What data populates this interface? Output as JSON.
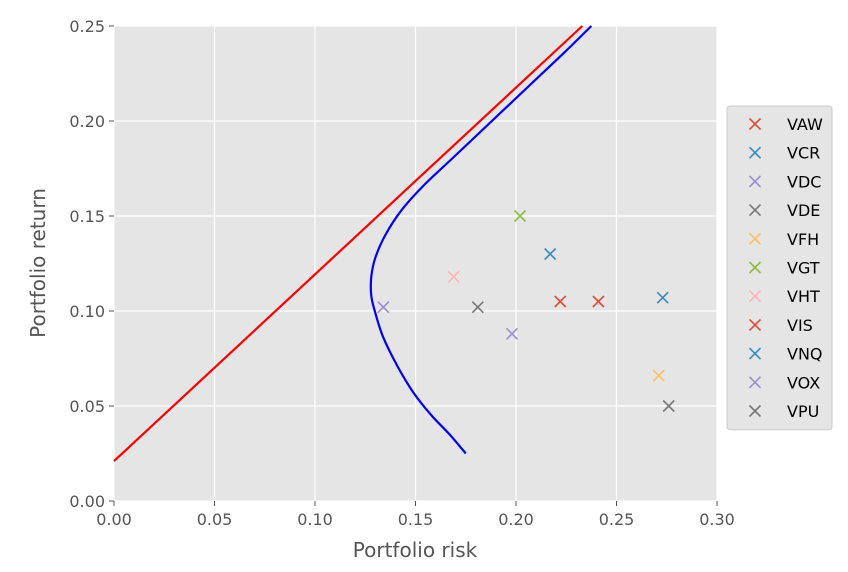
{
  "chart_data": {
    "type": "scatter",
    "xlabel": "Portfolio risk",
    "ylabel": "Portfolio return",
    "xlim": [
      0.0,
      0.3
    ],
    "ylim": [
      0.0,
      0.25
    ],
    "xticks": [
      "0.00",
      "0.05",
      "0.10",
      "0.15",
      "0.20",
      "0.25",
      "0.30"
    ],
    "yticks": [
      "0.00",
      "0.05",
      "0.10",
      "0.15",
      "0.20",
      "0.25"
    ],
    "grid": true,
    "legend_position": "right",
    "points": [
      {
        "name": "VAW",
        "x": 0.241,
        "y": 0.105,
        "color": "#E24A33"
      },
      {
        "name": "VCR",
        "x": 0.217,
        "y": 0.13,
        "color": "#348ABD"
      },
      {
        "name": "VDC",
        "x": 0.134,
        "y": 0.102,
        "color": "#988ED5"
      },
      {
        "name": "VDE",
        "x": 0.181,
        "y": 0.102,
        "color": "#777777"
      },
      {
        "name": "VFH",
        "x": 0.271,
        "y": 0.066,
        "color": "#FBC15E"
      },
      {
        "name": "VGT",
        "x": 0.202,
        "y": 0.15,
        "color": "#8EBA42"
      },
      {
        "name": "VHT",
        "x": 0.169,
        "y": 0.118,
        "color": "#FFB5B8"
      },
      {
        "name": "VIS",
        "x": 0.222,
        "y": 0.105,
        "color": "#E24A33"
      },
      {
        "name": "VNQ",
        "x": 0.273,
        "y": 0.107,
        "color": "#348ABD"
      },
      {
        "name": "VOX",
        "x": 0.198,
        "y": 0.088,
        "color": "#988ED5"
      },
      {
        "name": "VPU",
        "x": 0.276,
        "y": 0.05,
        "color": "#777777"
      }
    ],
    "capital_market_line": {
      "x": [
        0.0,
        0.233
      ],
      "y": [
        0.021,
        0.25
      ],
      "color": "#ff0000"
    },
    "efficient_frontier": {
      "color": "#0000ff",
      "x": [
        0.175,
        0.167,
        0.158,
        0.149,
        0.141,
        0.134,
        0.13,
        0.128,
        0.128,
        0.13,
        0.135,
        0.143,
        0.154,
        0.168,
        0.182,
        0.196,
        0.21,
        0.224,
        0.2375
      ],
      "y": [
        0.025,
        0.035,
        0.045,
        0.057,
        0.071,
        0.086,
        0.099,
        0.108,
        0.118,
        0.128,
        0.14,
        0.153,
        0.166,
        0.18,
        0.194,
        0.208,
        0.222,
        0.236,
        0.25
      ]
    }
  }
}
